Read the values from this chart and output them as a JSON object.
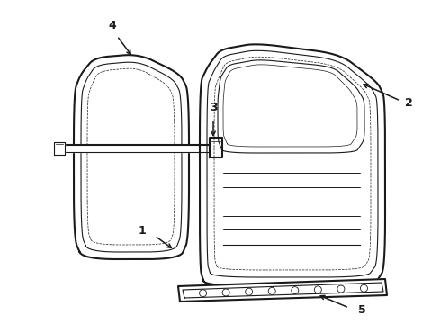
{
  "bg_color": "#ffffff",
  "line_color": "#1a1a1a",
  "lw_outer": 1.5,
  "lw_inner": 0.8,
  "lw_thin": 0.5,
  "label_fontsize": 9,
  "label_fontweight": "bold"
}
